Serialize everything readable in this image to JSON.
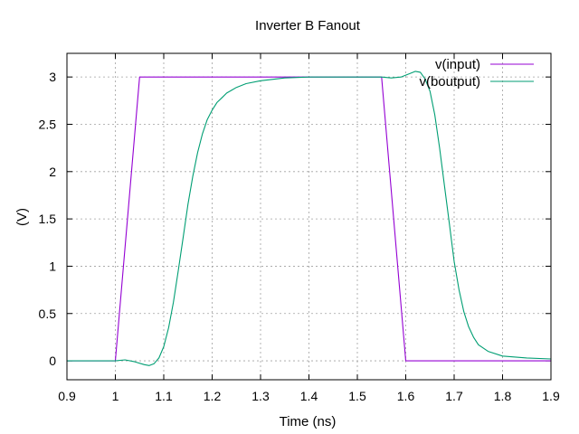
{
  "chart_data": {
    "type": "line",
    "title": "Inverter B Fanout",
    "xlabel": "Time (ns)",
    "ylabel": "(V)",
    "xlim": [
      0.9,
      1.9
    ],
    "ylim": [
      -0.2,
      3.25
    ],
    "xticks": [
      "0.9",
      "1",
      "1.1",
      "1.2",
      "1.3",
      "1.4",
      "1.5",
      "1.6",
      "1.7",
      "1.8",
      "1.9"
    ],
    "yticks": [
      "0",
      "0.5",
      "1",
      "1.5",
      "2",
      "2.5",
      "3"
    ],
    "grid": true,
    "legend_position": "top-right",
    "series": [
      {
        "name": "v(input)",
        "color": "#9400d3",
        "x": [
          0.9,
          1.0,
          1.05,
          1.55,
          1.6,
          1.9
        ],
        "y": [
          0,
          0,
          3,
          3,
          0,
          0
        ]
      },
      {
        "name": "v(boutput)",
        "color": "#009e73",
        "x": [
          0.9,
          1.0,
          1.02,
          1.04,
          1.06,
          1.07,
          1.08,
          1.09,
          1.1,
          1.11,
          1.12,
          1.13,
          1.14,
          1.15,
          1.16,
          1.17,
          1.18,
          1.19,
          1.2,
          1.21,
          1.22,
          1.23,
          1.25,
          1.27,
          1.3,
          1.35,
          1.4,
          1.45,
          1.5,
          1.55,
          1.57,
          1.59,
          1.6,
          1.61,
          1.62,
          1.63,
          1.64,
          1.65,
          1.66,
          1.67,
          1.68,
          1.69,
          1.7,
          1.71,
          1.72,
          1.73,
          1.74,
          1.75,
          1.77,
          1.8,
          1.85,
          1.9
        ],
        "y": [
          0,
          0,
          0.01,
          -0.01,
          -0.04,
          -0.05,
          -0.03,
          0.03,
          0.15,
          0.35,
          0.62,
          0.95,
          1.3,
          1.65,
          1.95,
          2.2,
          2.4,
          2.55,
          2.65,
          2.73,
          2.78,
          2.83,
          2.89,
          2.93,
          2.96,
          2.99,
          3.0,
          3.0,
          3.0,
          3.0,
          2.99,
          3.0,
          3.02,
          3.04,
          3.06,
          3.05,
          2.98,
          2.85,
          2.6,
          2.25,
          1.85,
          1.45,
          1.05,
          0.75,
          0.52,
          0.36,
          0.25,
          0.17,
          0.1,
          0.05,
          0.03,
          0.02
        ]
      }
    ]
  }
}
